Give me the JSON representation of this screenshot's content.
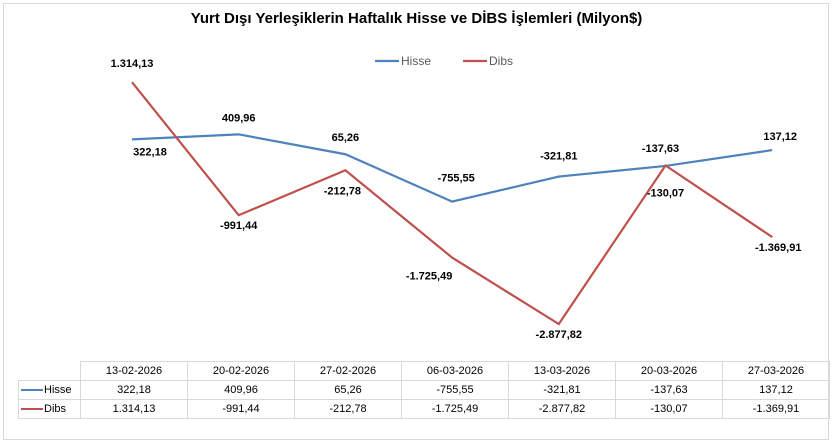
{
  "chart_data": {
    "type": "line",
    "title": "Yurt Dışı Yerleşiklerin Haftalık Hisse ve DİBS İşlemleri (Milyon$)",
    "categories": [
      "13-02-2026",
      "20-02-2026",
      "27-02-2026",
      "06-03-2026",
      "13-03-2026",
      "20-03-2026",
      "27-03-2026"
    ],
    "series": [
      {
        "name": "Hisse",
        "color": "#4f81bd",
        "values": [
          322.18,
          409.96,
          65.26,
          -755.55,
          -321.81,
          -137.63,
          137.12
        ],
        "labels": [
          "322,18",
          "409,96",
          "65,26",
          "-755,55",
          "-321,81",
          "-137,63",
          "137,12"
        ]
      },
      {
        "name": "Dibs",
        "color": "#c0504d",
        "values": [
          1314.13,
          -991.44,
          -212.78,
          -1725.49,
          -2877.82,
          -130.07,
          -1369.91
        ],
        "labels": [
          "1.314,13",
          "-991,44",
          "-212,78",
          "-1.725,49",
          "-2.877,82",
          "-130,07",
          "-1.369,91"
        ]
      }
    ],
    "legend_position": "top-center",
    "grid": false,
    "data_table": true
  }
}
